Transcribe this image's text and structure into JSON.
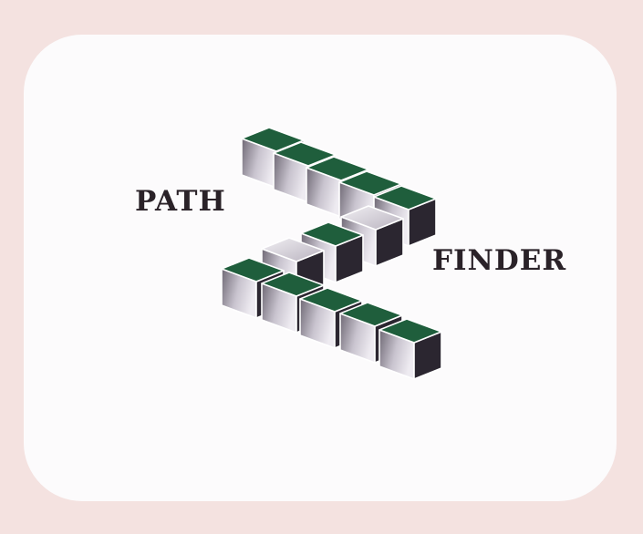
{
  "logo": {
    "word_left": "PATH",
    "word_right": "FINDER",
    "icon": "zigzag-cube-path-icon"
  },
  "colors": {
    "page_background": "#f4e2e0",
    "card_background": "#fcfbfc",
    "text": "#2a2228",
    "cube_top": "#1f5e3c",
    "cube_side_dark": "#2b2630",
    "cube_face_light": "#e6e2ea",
    "cube_face_shade": "#6e6874"
  }
}
